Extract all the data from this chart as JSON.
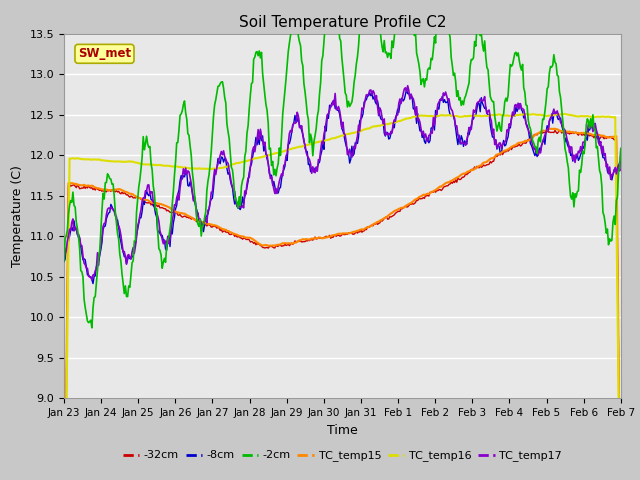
{
  "title": "Soil Temperature Profile C2",
  "xlabel": "Time",
  "ylabel": "Temperature (C)",
  "ylim": [
    9.0,
    13.5
  ],
  "yticks": [
    9.0,
    9.5,
    10.0,
    10.5,
    11.0,
    11.5,
    12.0,
    12.5,
    13.0,
    13.5
  ],
  "line_colors": {
    "-32cm": "#cc0000",
    "-8cm": "#0000cc",
    "-2cm": "#00bb00",
    "TC_temp15": "#ff8800",
    "TC_temp16": "#dddd00",
    "TC_temp17": "#8800cc"
  },
  "annotation_text": "SW_met",
  "annotation_bg": "#ffff99",
  "annotation_border": "#aaaa00",
  "annotation_fg": "#aa0000",
  "fig_bg": "#c8c8c8",
  "axes_bg": "#e8e8e8",
  "grid_color": "#ffffff"
}
